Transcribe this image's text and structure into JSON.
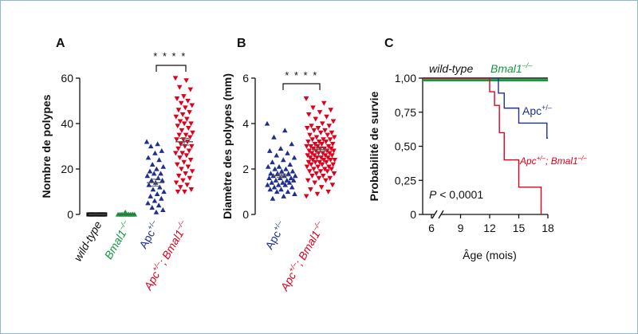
{
  "colors": {
    "wildtype": "#111111",
    "bmal1": "#139a3c",
    "apc": "#1f2f8f",
    "apc_bmal1": "#e0001b",
    "frame": "#8fb8cf"
  },
  "panels": {
    "A": {
      "label": "A",
      "significance": "* * * *"
    },
    "B": {
      "label": "B",
      "significance": "* * * *"
    },
    "C": {
      "label": "C",
      "curve_labels": {
        "wildtype": "wild-type",
        "bmal1": "Bmal1",
        "bmal1_sup": "–/–",
        "apc": "Apc",
        "apc_sup": "+/–",
        "apc_bmal1_a": "Apc",
        "apc_bmal1_a_sup": "+/–",
        "apc_bmal1_sep": "; ",
        "apc_bmal1_b": "Bmal1",
        "apc_bmal1_b_sup": "–/–"
      },
      "pvalue_p": "P",
      "pvalue_rest": " < 0,0001"
    }
  },
  "chart_data": [
    {
      "type": "scatter",
      "panel": "A",
      "title": "",
      "ylabel": "Nombre de polypes",
      "ylim": [
        0,
        60
      ],
      "yticks": [
        "0",
        "20",
        "40",
        "60"
      ],
      "categories": [
        {
          "parts": [
            {
              "t": "wild-type"
            }
          ],
          "italic": true,
          "color_key": "wildtype"
        },
        {
          "parts": [
            {
              "t": "Bmal1"
            },
            {
              "t": "–/–",
              "sup": true
            }
          ],
          "italic": true,
          "color_key": "bmal1"
        },
        {
          "parts": [
            {
              "t": "Apc"
            },
            {
              "t": "+/–",
              "sup": true
            }
          ],
          "italic": false,
          "color_key": "apc"
        },
        {
          "parts": [
            {
              "t": "Apc"
            },
            {
              "t": "+/–",
              "sup": true
            },
            {
              "t": "; Bmal1"
            },
            {
              "t": "–/–",
              "sup": true
            }
          ],
          "italic": true,
          "color_key": "apc_bmal1"
        }
      ],
      "series": [
        {
          "color_key": "wildtype",
          "marker": "square",
          "mean": 0,
          "sem": 0,
          "values": [
            0,
            0,
            0,
            0,
            0,
            0,
            0,
            0,
            0,
            0,
            0,
            0
          ]
        },
        {
          "color_key": "bmal1",
          "marker": "triangle-up",
          "mean": 0,
          "sem": 0,
          "values": [
            0,
            0,
            0,
            0,
            0,
            0,
            0,
            0,
            0,
            0,
            0,
            0,
            1
          ]
        },
        {
          "color_key": "apc",
          "marker": "triangle-up",
          "mean": 14,
          "sem": 1.5,
          "values": [
            32,
            31,
            30,
            28,
            27,
            25,
            24,
            22,
            21,
            20,
            19,
            18,
            18,
            17,
            16,
            15,
            15,
            14,
            13,
            12,
            11,
            10,
            9,
            8,
            7,
            6,
            5,
            4,
            3,
            2,
            1
          ]
        },
        {
          "color_key": "apc_bmal1",
          "marker": "triangle-down",
          "mean": 32,
          "sem": 1.5,
          "values": [
            60,
            59,
            56,
            55,
            52,
            51,
            50,
            49,
            48,
            47,
            46,
            45,
            44,
            43,
            42,
            41,
            40,
            40,
            39,
            38,
            37,
            36,
            35,
            35,
            34,
            33,
            33,
            32,
            31,
            30,
            30,
            29,
            28,
            27,
            27,
            26,
            25,
            24,
            23,
            22,
            21,
            20,
            19,
            18,
            17,
            16,
            15,
            14,
            13,
            12,
            11,
            10,
            10
          ]
        }
      ]
    },
    {
      "type": "scatter",
      "panel": "B",
      "title": "",
      "ylabel": "Diamètre des polypes (mm)",
      "ylim": [
        0,
        6
      ],
      "yticks": [
        "0",
        "2",
        "4",
        "6"
      ],
      "categories": [
        {
          "parts": [
            {
              "t": "Apc"
            },
            {
              "t": "+/–",
              "sup": true
            }
          ],
          "italic": false,
          "color_key": "apc"
        },
        {
          "parts": [
            {
              "t": "Apc"
            },
            {
              "t": "+/–",
              "sup": true
            },
            {
              "t": "; Bmal1"
            },
            {
              "t": "–/–",
              "sup": true
            }
          ],
          "italic": true,
          "color_key": "apc_bmal1"
        }
      ],
      "series": [
        {
          "color_key": "apc",
          "marker": "triangle-up",
          "mean": 1.7,
          "sem": 0.08,
          "values": [
            4.0,
            3.7,
            3.4,
            3.1,
            2.9,
            2.8,
            2.7,
            2.6,
            2.5,
            2.4,
            2.3,
            2.2,
            2.1,
            2.1,
            2.0,
            2.0,
            1.9,
            1.9,
            1.8,
            1.8,
            1.8,
            1.7,
            1.7,
            1.7,
            1.6,
            1.6,
            1.6,
            1.5,
            1.5,
            1.5,
            1.4,
            1.4,
            1.4,
            1.3,
            1.3,
            1.3,
            1.2,
            1.2,
            1.1,
            1.1,
            1.0,
            1.0,
            0.9,
            0.8,
            0.7
          ]
        },
        {
          "color_key": "apc_bmal1",
          "marker": "triangle-down",
          "mean": 2.85,
          "sem": 0.08,
          "values": [
            5.1,
            4.9,
            4.7,
            4.6,
            4.5,
            4.4,
            4.3,
            4.2,
            4.1,
            4.0,
            3.9,
            3.9,
            3.8,
            3.8,
            3.7,
            3.7,
            3.6,
            3.6,
            3.5,
            3.5,
            3.4,
            3.4,
            3.3,
            3.3,
            3.3,
            3.2,
            3.2,
            3.2,
            3.1,
            3.1,
            3.1,
            3.0,
            3.0,
            3.0,
            3.0,
            2.9,
            2.9,
            2.9,
            2.9,
            2.8,
            2.8,
            2.8,
            2.8,
            2.7,
            2.7,
            2.7,
            2.7,
            2.6,
            2.6,
            2.6,
            2.6,
            2.5,
            2.5,
            2.5,
            2.5,
            2.4,
            2.4,
            2.4,
            2.4,
            2.3,
            2.3,
            2.3,
            2.3,
            2.2,
            2.2,
            2.2,
            2.1,
            2.1,
            2.1,
            2.0,
            2.0,
            2.0,
            1.9,
            1.9,
            1.9,
            1.8,
            1.8,
            1.7,
            1.7,
            1.6,
            1.6,
            1.5,
            1.5,
            1.4,
            1.3,
            1.2,
            1.1,
            1.0,
            0.9,
            0.8
          ]
        }
      ]
    },
    {
      "type": "line",
      "panel": "C",
      "step": true,
      "title": "",
      "xlabel": "Âge (mois)",
      "ylabel": "Probabilité de survie",
      "xticks": [
        6,
        9,
        12,
        15,
        18
      ],
      "xtick_labels": [
        "6",
        "9",
        "12",
        "15",
        "18"
      ],
      "xlim": [
        4,
        18
      ],
      "axis_break": true,
      "ylim": [
        0,
        1
      ],
      "yticks": [
        0,
        0.25,
        0.5,
        0.75,
        1.0
      ],
      "ytick_labels": [
        "0",
        "0,25",
        "0,50",
        "0,75",
        "1,00"
      ],
      "series": [
        {
          "key": "wildtype",
          "color_key": "wildtype",
          "x": [
            4,
            18
          ],
          "y": [
            1.0,
            1.0
          ]
        },
        {
          "key": "bmal1",
          "color_key": "bmal1",
          "x": [
            4,
            18
          ],
          "y": [
            0.985,
            0.985
          ]
        },
        {
          "key": "apc",
          "color_key": "apc",
          "x": [
            4,
            12.9,
            13.5,
            15,
            17.9,
            18
          ],
          "y": [
            1.0,
            0.89,
            0.78,
            0.67,
            0.56,
            0.56
          ]
        },
        {
          "key": "apc_bmal1",
          "color_key": "apc_bmal1",
          "x": [
            4,
            12,
            12.5,
            13,
            13.5,
            15,
            17.3
          ],
          "y": [
            1.0,
            0.9,
            0.8,
            0.6,
            0.4,
            0.2,
            0
          ]
        }
      ]
    }
  ]
}
